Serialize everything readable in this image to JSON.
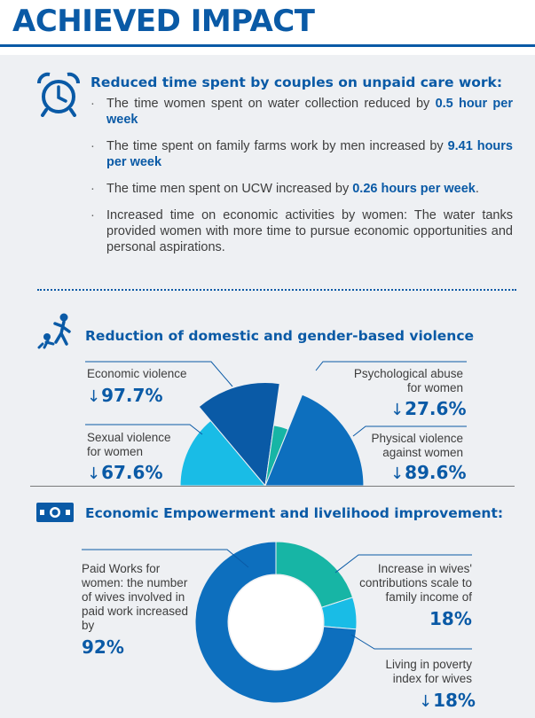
{
  "title": "ACHIEVED IMPACT",
  "colors": {
    "dark_blue": "#0a5aa6",
    "mid_blue": "#0d6fbe",
    "light_blue": "#19bce6",
    "teal": "#17b5a5",
    "panel_bg": "#eef0f3"
  },
  "section1": {
    "heading": "Reduced time spent by couples on unpaid care work:",
    "icon": "alarm-clock-icon",
    "bullets": [
      {
        "text": "The time women spent on water collection reduced by ",
        "highlight": "0.5 hour per week",
        "suffix": ""
      },
      {
        "text": "The time spent on family farms work by men increased by ",
        "highlight": "9.41 hours per week",
        "suffix": ""
      },
      {
        "text": "The time men spent on UCW increased by ",
        "highlight": "0.26 hours per week",
        "suffix": "."
      },
      {
        "text": "Increased time on economic activities by women: The water tanks provided women with more time to pursue economic opportunities and personal aspirations.",
        "highlight": "",
        "suffix": ""
      }
    ]
  },
  "section2": {
    "heading": "Reduction of domestic and gender-based violence",
    "icon": "violence-icon",
    "chart_data": {
      "type": "pie",
      "title": "Reduction of domestic and gender-based violence",
      "slices": [
        {
          "label": "Sexual violence for women",
          "value": 67.6,
          "display": "67.6%",
          "color": "#19bce6"
        },
        {
          "label": "Economic violence",
          "value": 97.7,
          "display": "97.7%",
          "color": "#0a5aa6"
        },
        {
          "label": "Psychological abuse for women",
          "value": 27.6,
          "display": "27.6%",
          "color": "#17b5a5"
        },
        {
          "label": "Physical violence against women",
          "value": 89.6,
          "display": "89.6%",
          "color": "#0d6fbe"
        }
      ]
    }
  },
  "section3": {
    "heading": "Economic Empowerment and livelihood improvement:",
    "icon": "money-icon",
    "chart_data": {
      "type": "pie",
      "title": "Economic Empowerment and livelihood improvement",
      "slices": [
        {
          "label": "Increase in wives' contributions scale to family income of",
          "value": 18,
          "display": "18%",
          "color": "#17b5a5"
        },
        {
          "label": "Living in poverty index for wives",
          "value": 18,
          "display": "18%",
          "color": "#19bce6"
        },
        {
          "label": "Paid Works for women: the number of wives involved in paid work increased by",
          "value": 92,
          "display": "92%",
          "color": "#0d6fbe"
        }
      ]
    }
  },
  "arrow_glyph": "↓"
}
